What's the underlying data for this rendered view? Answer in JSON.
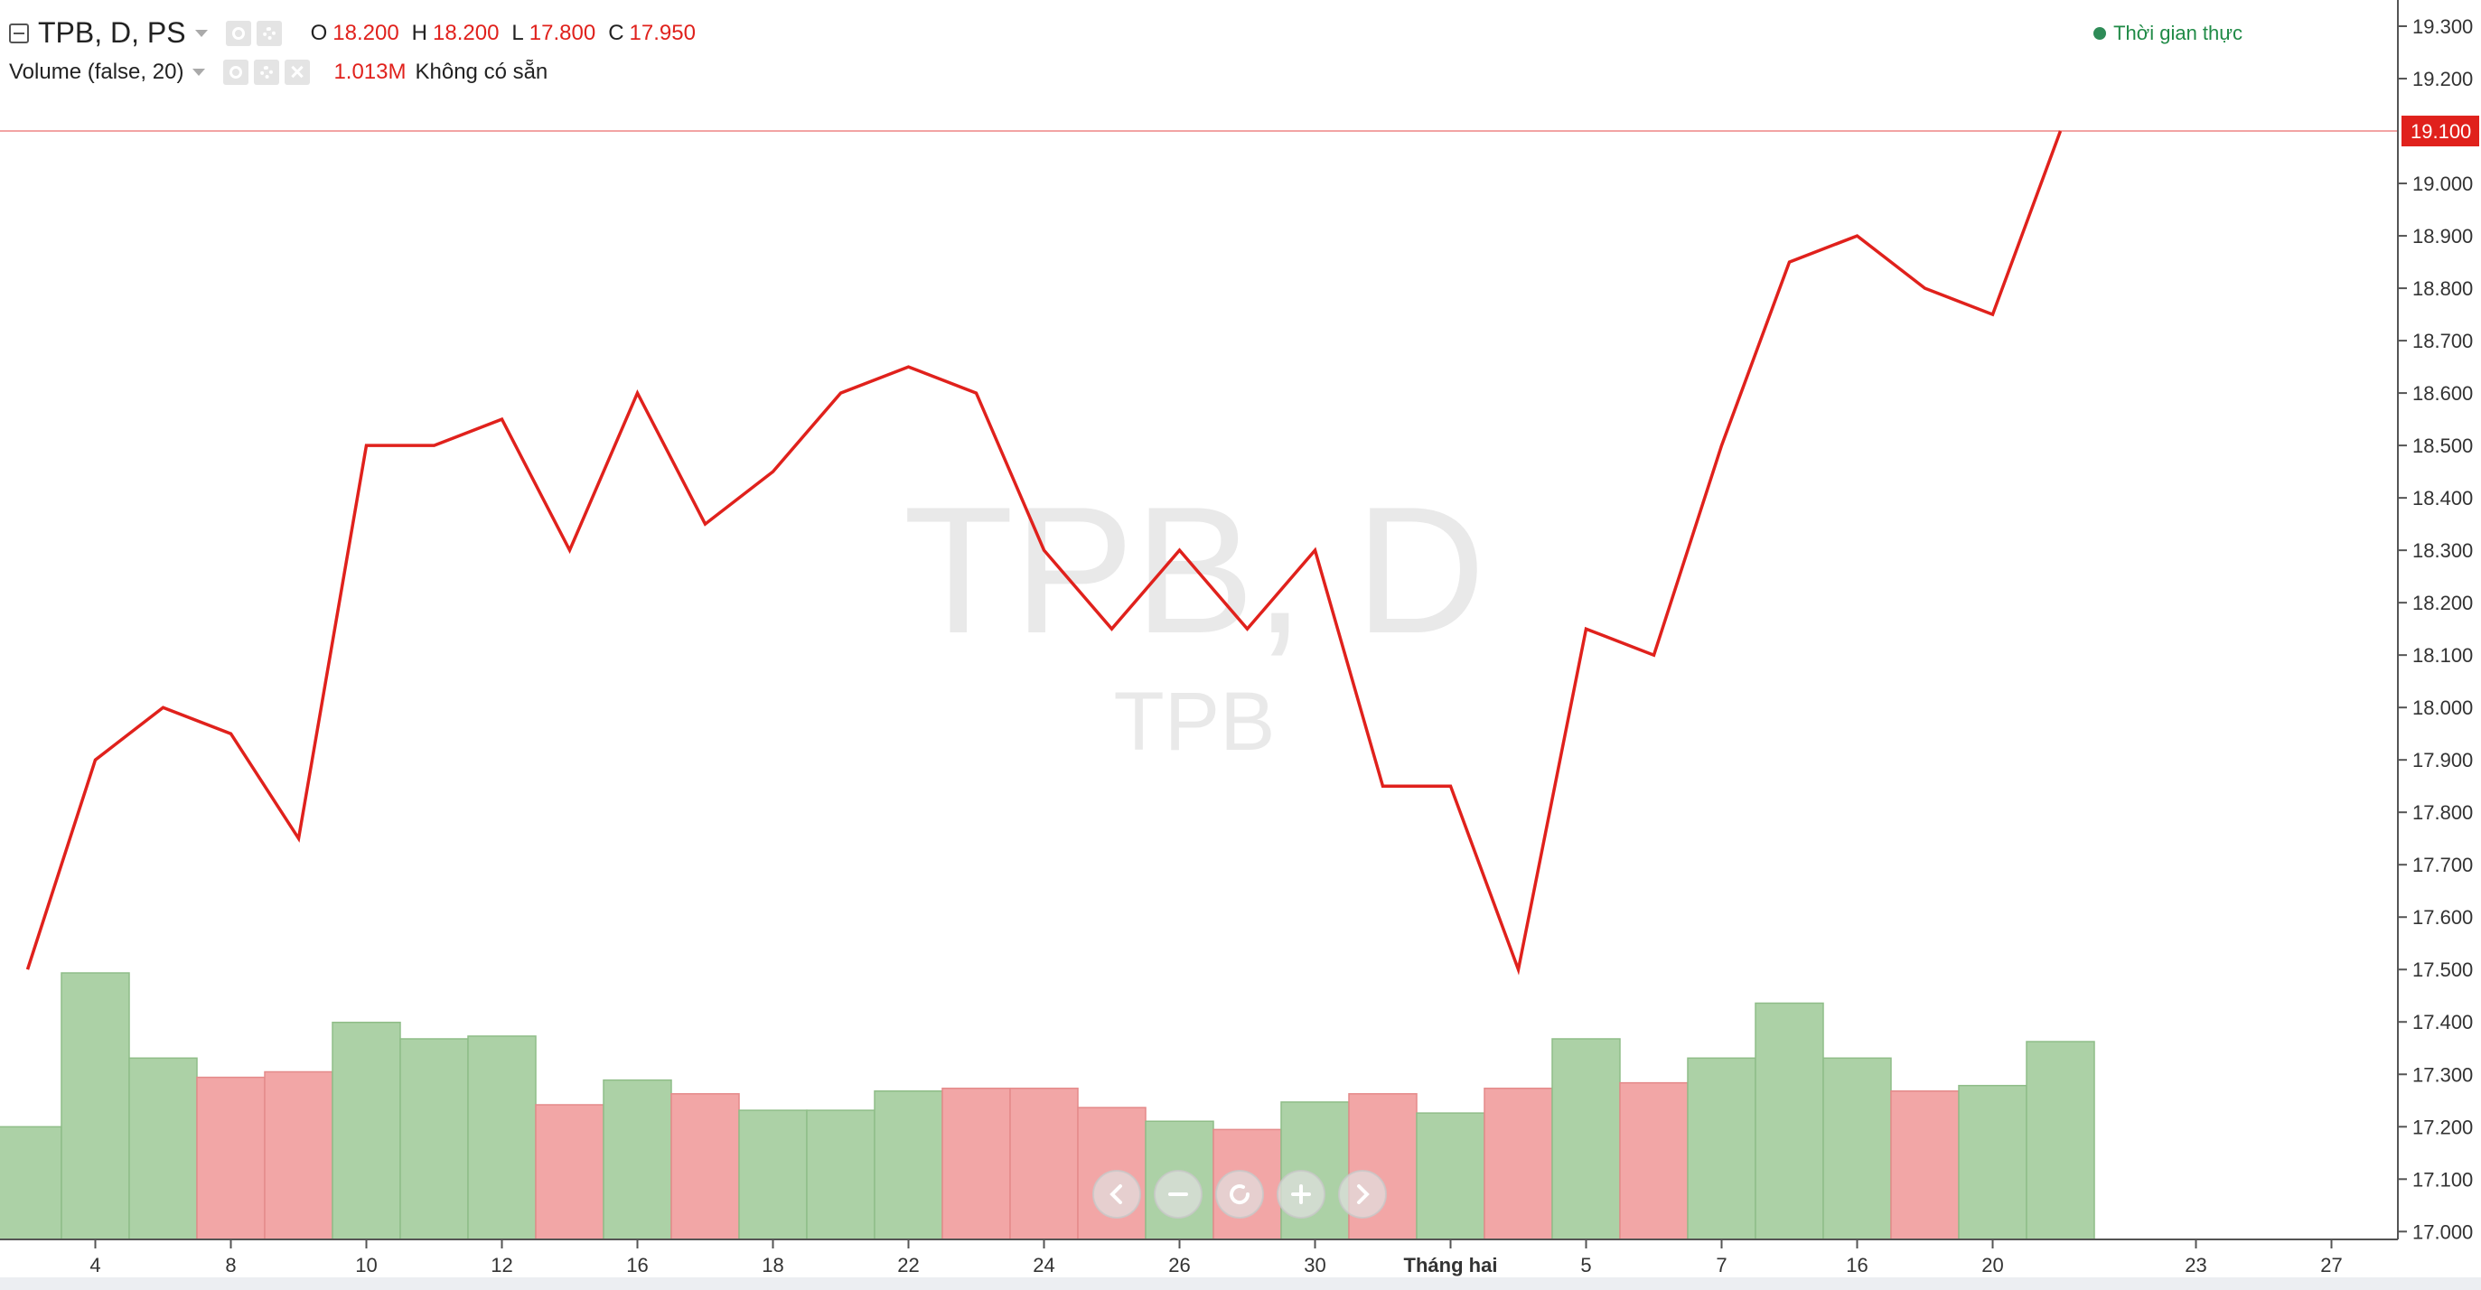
{
  "legend": {
    "symbol_label": "TPB, D, PS",
    "open_key": "O",
    "open_value": "18.200",
    "high_key": "H",
    "high_value": "18.200",
    "low_key": "L",
    "low_value": "17.800",
    "close_key": "C",
    "close_value": "17.950",
    "volume_label": "Volume (false, 20)",
    "volume_value": "1.013M",
    "volume_status": "Không có sẵn"
  },
  "status": {
    "realtime_label": "Thời gian thực"
  },
  "watermark": {
    "main": "TPB, D",
    "sub": "TPB"
  },
  "colors": {
    "line": "#e0211c",
    "volume_up": "#acd1a6",
    "volume_down": "#f2a6a6",
    "price_badge": "#e0211c"
  },
  "chart_data": {
    "type": "line",
    "x_tick_labels": [
      "4",
      "8",
      "10",
      "12",
      "16",
      "18",
      "22",
      "24",
      "26",
      "30",
      "Tháng hai",
      "5",
      "7",
      "16",
      "20",
      "23",
      "27"
    ],
    "y_tick_labels": [
      "19.300",
      "19.200",
      "19.000",
      "18.900",
      "18.800",
      "18.700",
      "18.600",
      "18.500",
      "18.400",
      "18.300",
      "18.200",
      "18.100",
      "18.000",
      "17.900",
      "17.800",
      "17.700",
      "17.600",
      "17.500",
      "17.400",
      "17.300",
      "17.200",
      "17.100",
      "17.000"
    ],
    "y_range": [
      16.985,
      19.35
    ],
    "last_price_label": "19.100",
    "last_price": 19.1,
    "series": [
      {
        "values": [
          17.5,
          17.9,
          18.0,
          17.95,
          17.75,
          18.5,
          18.5,
          18.55,
          18.3,
          18.6,
          18.35,
          18.45,
          18.6,
          18.65,
          18.6,
          18.3,
          18.15,
          18.3,
          18.15,
          18.3,
          17.85,
          17.85,
          17.5,
          18.15,
          18.1,
          18.5,
          18.85,
          18.9,
          18.8,
          18.75,
          19.1
        ]
      }
    ],
    "volume": {
      "values": [
        0.41,
        0.97,
        0.66,
        0.59,
        0.61,
        0.79,
        0.73,
        0.74,
        0.49,
        0.58,
        0.53,
        0.47,
        0.47,
        0.54,
        0.55,
        0.55,
        0.48,
        0.43,
        0.4,
        0.5,
        0.53,
        0.46,
        0.55,
        0.73,
        0.57,
        0.66,
        0.86,
        0.66,
        0.54,
        0.56,
        0.72
      ],
      "direction": [
        "up",
        "up",
        "up",
        "down",
        "down",
        "up",
        "up",
        "up",
        "down",
        "up",
        "down",
        "up",
        "up",
        "up",
        "down",
        "down",
        "down",
        "up",
        "down",
        "up",
        "down",
        "up",
        "down",
        "up",
        "down",
        "up",
        "up",
        "up",
        "down",
        "up",
        "up"
      ]
    },
    "grid": false,
    "legend": "top-left"
  }
}
